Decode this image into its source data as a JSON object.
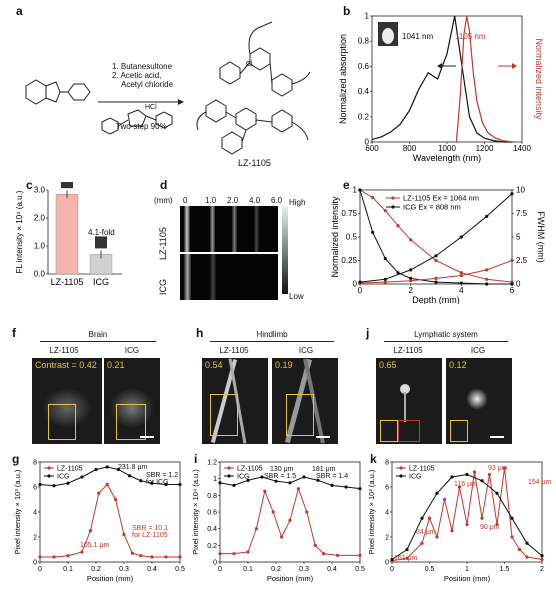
{
  "panels": {
    "a": {
      "label": "a",
      "steps": [
        "1. Butanesultone",
        "2. Acetic acid,",
        "Acetyl chloride"
      ],
      "yield": "Two-step 90%",
      "compound": "LZ-1105",
      "hcl": "HCl"
    },
    "b": {
      "label": "b",
      "peak_abs": "1041 nm",
      "peak_em": "1105 nm",
      "xlabel": "Wavelength (nm)",
      "ylabel": "Normalized absorption",
      "y2label": "Normalized intensity"
    },
    "c": {
      "label": "c",
      "ylabel": "FL intensity × 10⁴ (a.u.)",
      "fold": "4.1-fold"
    },
    "d": {
      "label": "d",
      "unit": "(mm)",
      "depths": [
        "0",
        "1.0",
        "2.0",
        "4.0",
        "6.0"
      ],
      "rows": [
        "LZ-1105",
        "ICG"
      ],
      "high": "High",
      "low": "Low"
    },
    "e": {
      "label": "e",
      "legend1": "LZ-1105 Ex = 1064 nm",
      "legend2": "ICG Ex = 808 nm",
      "xlabel": "Depth (mm)",
      "ylabel": "Normalized intensity",
      "y2label": "FWHM (mm)"
    },
    "f": {
      "label": "f",
      "title": "Brain",
      "left": "LZ-1105",
      "right": "ICG",
      "contrast_left": "Contrast = 0.42",
      "contrast_right": "0.21"
    },
    "h": {
      "label": "h",
      "title": "Hindlimb",
      "left": "LZ-1105",
      "right": "ICG",
      "contrast_left": "0.54",
      "contrast_right": "0.19"
    },
    "j": {
      "label": "j",
      "title": "Lymphatic system",
      "left": "LZ-1105",
      "right": "ICG",
      "contrast_left": "0.65",
      "contrast_right": "0.12"
    },
    "g": {
      "label": "g",
      "ylabel": "Pixel intensity × 10³ (a.u.)",
      "xlabel": "Position (mm)",
      "ann1": "231.8 μm",
      "ann2": "SBR = 1.2",
      "ann3": "for ICG",
      "ann4": "105.1 μm",
      "ann5": "SBR = 10.1",
      "ann6": "for LZ-1105"
    },
    "i": {
      "label": "i",
      "ylabel": "Pixel intensity × 10⁴ (a.u.)",
      "xlabel": "Position (mm)",
      "ann1": "130 μm",
      "ann2": "SBR = 1.5",
      "ann3": "181 μm",
      "ann4": "SBR = 1.4"
    },
    "k": {
      "label": "k",
      "ylabel": "Pixel intensity × 10² (a.u.)",
      "xlabel": "Position (mm)",
      "ann1": "93 μm",
      "ann2": "116 μm",
      "ann3": "154 μm",
      "ann4": "84 μm",
      "ann5": "90 μm",
      "ann6": "161 μm"
    }
  },
  "chart_data": [
    {
      "panel": "b",
      "type": "line",
      "xlabel": "Wavelength (nm)",
      "ylabel": "Normalized absorption",
      "y2label": "Normalized intensity",
      "xlim": [
        600,
        1400
      ],
      "ylim": [
        0,
        1.0
      ],
      "xticks": [
        600,
        800,
        1000,
        1200,
        1400
      ],
      "yticks": [
        0,
        0.2,
        0.4,
        0.6,
        0.8,
        1.0
      ],
      "series": [
        {
          "color": "#111111",
          "x": [
            600,
            650,
            700,
            750,
            800,
            850,
            900,
            950,
            1000,
            1041,
            1080,
            1120,
            1160,
            1200,
            1250,
            1300,
            1350
          ],
          "y": [
            0.02,
            0.04,
            0.08,
            0.14,
            0.25,
            0.42,
            0.55,
            0.5,
            0.7,
            1.0,
            0.6,
            0.2,
            0.07,
            0.03,
            0.01,
            0.0,
            0.0
          ]
        },
        {
          "color": "#c0392b",
          "x": [
            1050,
            1070,
            1090,
            1105,
            1120,
            1140,
            1160,
            1190,
            1220,
            1260,
            1300,
            1350
          ],
          "y": [
            0.0,
            0.35,
            0.85,
            1.0,
            0.88,
            0.55,
            0.32,
            0.15,
            0.07,
            0.03,
            0.01,
            0.0
          ]
        }
      ]
    },
    {
      "panel": "c",
      "type": "bar",
      "categories": [
        "LZ-1105",
        "ICG"
      ],
      "values": [
        2.85,
        0.7
      ],
      "ylim": [
        0,
        3.0
      ],
      "yticks": [
        0,
        1.0,
        2.0,
        3.0
      ],
      "colors": [
        "#f5b3ad",
        "#d0d0d0"
      ]
    },
    {
      "panel": "e",
      "type": "line",
      "xlabel": "Depth (mm)",
      "ylabel": "Normalized intensity",
      "y2label": "FWHM (mm)",
      "xlim": [
        0,
        6
      ],
      "ylim": [
        0,
        1.0
      ],
      "y2lim": [
        0,
        10
      ],
      "xticks": [
        0,
        2,
        4,
        6
      ],
      "yticks": [
        0,
        0.25,
        0.5,
        0.75,
        1.0
      ],
      "y2ticks": [
        0,
        2.5,
        5.0,
        7.5,
        10.0
      ],
      "series": [
        {
          "color": "#c0392b",
          "axis": "left",
          "x": [
            0,
            0.5,
            1,
            1.5,
            2,
            3,
            4,
            5,
            6
          ],
          "y": [
            1.0,
            0.92,
            0.78,
            0.62,
            0.47,
            0.25,
            0.12,
            0.05,
            0.02
          ]
        },
        {
          "color": "#111111",
          "axis": "left",
          "x": [
            0,
            0.5,
            1,
            1.5,
            2,
            3,
            4,
            5,
            6
          ],
          "y": [
            1.0,
            0.55,
            0.27,
            0.12,
            0.06,
            0.02,
            0.01,
            0.0,
            0.0
          ]
        },
        {
          "color": "#c0392b",
          "axis": "right",
          "x": [
            0,
            1,
            2,
            3,
            4,
            5,
            6
          ],
          "y": [
            0.1,
            0.2,
            0.35,
            0.6,
            0.9,
            1.5,
            2.5
          ]
        },
        {
          "color": "#111111",
          "axis": "right",
          "x": [
            0,
            1,
            2,
            3,
            4,
            5,
            6
          ],
          "y": [
            0.2,
            0.5,
            1.5,
            3.0,
            5.0,
            7.2,
            9.6
          ]
        }
      ]
    },
    {
      "panel": "g",
      "type": "line",
      "xlabel": "Position (mm)",
      "ylabel": "Pixel intensity × 10³ (a.u.)",
      "xlim": [
        0,
        0.5
      ],
      "ylim": [
        0,
        8
      ],
      "xticks": [
        0,
        0.1,
        0.2,
        0.3,
        0.4,
        0.5
      ],
      "yticks": [
        0,
        2,
        4,
        6,
        8
      ],
      "series": [
        {
          "name": "LZ-1105",
          "color": "#c0392b",
          "x": [
            0,
            0.05,
            0.1,
            0.15,
            0.18,
            0.21,
            0.24,
            0.27,
            0.3,
            0.33,
            0.36,
            0.4,
            0.45,
            0.5
          ],
          "y": [
            0.4,
            0.4,
            0.5,
            0.8,
            2.5,
            5.5,
            6.2,
            5.0,
            2.2,
            0.7,
            0.5,
            0.4,
            0.4,
            0.4
          ]
        },
        {
          "name": "ICG",
          "color": "#111111",
          "x": [
            0,
            0.05,
            0.1,
            0.15,
            0.2,
            0.24,
            0.28,
            0.32,
            0.36,
            0.4,
            0.45,
            0.5
          ],
          "y": [
            6.2,
            6.1,
            6.3,
            6.8,
            7.4,
            7.6,
            7.4,
            6.9,
            6.5,
            6.3,
            6.2,
            6.2
          ]
        }
      ]
    },
    {
      "panel": "i",
      "type": "line",
      "xlabel": "Position (mm)",
      "ylabel": "Pixel intensity × 10⁴ (a.u.)",
      "xlim": [
        0,
        0.5
      ],
      "ylim": [
        0,
        1.2
      ],
      "xticks": [
        0,
        0.1,
        0.2,
        0.3,
        0.4,
        0.5
      ],
      "yticks": [
        0,
        0.2,
        0.4,
        0.6,
        0.8,
        1.0,
        1.2
      ],
      "series": [
        {
          "name": "LZ-1105",
          "color": "#c0392b",
          "x": [
            0,
            0.05,
            0.1,
            0.13,
            0.16,
            0.19,
            0.22,
            0.25,
            0.28,
            0.31,
            0.34,
            0.37,
            0.42,
            0.5
          ],
          "y": [
            0.1,
            0.1,
            0.12,
            0.4,
            0.85,
            0.6,
            0.3,
            0.5,
            0.88,
            0.6,
            0.2,
            0.1,
            0.08,
            0.08
          ]
        },
        {
          "name": "ICG",
          "color": "#111111",
          "x": [
            0,
            0.05,
            0.1,
            0.15,
            0.2,
            0.25,
            0.3,
            0.35,
            0.4,
            0.45,
            0.5
          ],
          "y": [
            0.95,
            0.92,
            0.98,
            1.02,
            0.97,
            0.95,
            1.02,
            0.98,
            0.92,
            0.9,
            0.88
          ]
        }
      ]
    },
    {
      "panel": "k",
      "type": "line",
      "xlabel": "Position (mm)",
      "ylabel": "Pixel intensity × 10² (a.u.)",
      "xlim": [
        0,
        2.0
      ],
      "ylim": [
        0,
        8
      ],
      "xticks": [
        0,
        0.5,
        1.0,
        1.5,
        2.0
      ],
      "yticks": [
        0,
        2,
        4,
        6,
        8
      ],
      "series": [
        {
          "name": "LZ-1105",
          "color": "#c0392b",
          "x": [
            0,
            0.2,
            0.4,
            0.5,
            0.6,
            0.7,
            0.8,
            0.9,
            1.0,
            1.1,
            1.2,
            1.3,
            1.4,
            1.5,
            1.6,
            1.7,
            1.8,
            2.0
          ],
          "y": [
            0.1,
            0.3,
            1.5,
            3.5,
            2.0,
            5.0,
            2.5,
            6.0,
            3.0,
            7.2,
            3.5,
            7.0,
            3.0,
            7.5,
            2.0,
            1.0,
            0.4,
            0.2
          ]
        },
        {
          "name": "ICG",
          "color": "#111111",
          "x": [
            0,
            0.2,
            0.4,
            0.6,
            0.8,
            1.0,
            1.2,
            1.4,
            1.6,
            1.8,
            2.0
          ],
          "y": [
            0.2,
            1.0,
            3.5,
            5.5,
            6.8,
            7.0,
            6.5,
            5.5,
            3.5,
            1.5,
            0.5
          ]
        }
      ]
    }
  ]
}
